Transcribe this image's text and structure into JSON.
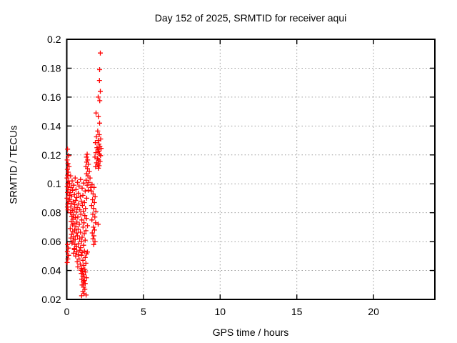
{
  "title": "Day 152 of 2025, SRMTID for receiver aqui",
  "colors": {
    "marker": "#ff0000",
    "grid": "#999999",
    "border": "#000000",
    "background": "#ffffff",
    "text": "#000000"
  },
  "chart_data": {
    "type": "scatter",
    "title": "Day 152 of 2025, SRMTID for receiver aqui",
    "xlabel": "GPS time / hours",
    "ylabel": "SRMTID / TECUs",
    "xlim": [
      0,
      24
    ],
    "ylim": [
      0.02,
      0.2
    ],
    "xticks": [
      0,
      5,
      10,
      15,
      20
    ],
    "xtick_labels": [
      "0",
      "5",
      "10",
      "15",
      "20"
    ],
    "yticks": [
      0.02,
      0.04,
      0.06,
      0.08,
      0.1,
      0.12,
      0.14,
      0.16,
      0.18,
      0.2
    ],
    "ytick_labels": [
      "0.02",
      "0.04",
      "0.06",
      "0.08",
      "0.1",
      "0.12",
      "0.14",
      "0.16",
      "0.18",
      "0.2"
    ],
    "grid": true,
    "legend": "none",
    "marker": {
      "shape": "plus",
      "color": "#ff0000",
      "size": 7
    },
    "series": [
      {
        "name": "SRMTID",
        "points": [
          [
            2.19,
            0.1905
          ],
          [
            2.14,
            0.179
          ],
          [
            2.13,
            0.1715
          ],
          [
            2.19,
            0.164
          ],
          [
            2.05,
            0.16
          ],
          [
            2.15,
            0.1575
          ],
          [
            1.91,
            0.149
          ],
          [
            2.06,
            0.1465
          ],
          [
            2.14,
            0.142
          ],
          [
            2.02,
            0.1365
          ],
          [
            2.12,
            0.134
          ],
          [
            1.93,
            0.1325
          ],
          [
            2.21,
            0.131
          ],
          [
            2.05,
            0.13
          ],
          [
            1.86,
            0.1285
          ],
          [
            2.1,
            0.1275
          ],
          [
            2.16,
            0.126
          ],
          [
            1.97,
            0.125
          ],
          [
            2.24,
            0.1245
          ],
          [
            2.03,
            0.1235
          ],
          [
            2.08,
            0.1225
          ],
          [
            1.9,
            0.1215
          ],
          [
            2.14,
            0.1205
          ],
          [
            2.2,
            0.1195
          ],
          [
            1.84,
            0.1185
          ],
          [
            2.0,
            0.1175
          ],
          [
            2.07,
            0.1165
          ],
          [
            2.17,
            0.1155
          ],
          [
            1.94,
            0.1145
          ],
          [
            2.03,
            0.1135
          ],
          [
            2.11,
            0.1125
          ],
          [
            1.88,
            0.1118
          ],
          [
            2.06,
            0.1108
          ],
          [
            1.33,
            0.1205
          ],
          [
            1.28,
            0.1185
          ],
          [
            1.36,
            0.1165
          ],
          [
            1.3,
            0.115
          ],
          [
            1.41,
            0.1135
          ],
          [
            1.25,
            0.112
          ],
          [
            1.35,
            0.1105
          ],
          [
            1.47,
            0.1085
          ],
          [
            1.29,
            0.107
          ],
          [
            1.38,
            0.1055
          ],
          [
            1.52,
            0.104
          ],
          [
            1.26,
            0.1025
          ],
          [
            1.44,
            0.101
          ],
          [
            1.33,
            0.099
          ],
          [
            1.56,
            0.0975
          ],
          [
            1.4,
            0.0955
          ],
          [
            0.05,
            0.124
          ],
          [
            0.12,
            0.1195
          ],
          [
            0.03,
            0.1165
          ],
          [
            0.08,
            0.114
          ],
          [
            0.15,
            0.112
          ],
          [
            0.04,
            0.11
          ],
          [
            0.1,
            0.108
          ],
          [
            0.06,
            0.106
          ],
          [
            0.02,
            0.104
          ],
          [
            0.13,
            0.102
          ],
          [
            0.07,
            0.1
          ],
          [
            0.03,
            0.098
          ],
          [
            0.09,
            0.096
          ],
          [
            0.05,
            0.094
          ],
          [
            0.16,
            0.092
          ],
          [
            0.02,
            0.09
          ],
          [
            0.11,
            0.088
          ],
          [
            0.06,
            0.086
          ],
          [
            0.04,
            0.084
          ],
          [
            0.08,
            0.082
          ],
          [
            0.25,
            0.1055
          ],
          [
            0.55,
            0.104
          ],
          [
            0.9,
            0.103
          ],
          [
            0.35,
            0.102
          ],
          [
            0.7,
            0.101
          ],
          [
            1.1,
            0.1005
          ],
          [
            0.18,
            0.1
          ],
          [
            0.45,
            0.099
          ],
          [
            0.8,
            0.0985
          ],
          [
            0.28,
            0.0975
          ],
          [
            1.0,
            0.097
          ],
          [
            0.6,
            0.096
          ],
          [
            0.38,
            0.0955
          ],
          [
            1.2,
            0.095
          ],
          [
            0.22,
            0.094
          ],
          [
            0.75,
            0.0935
          ],
          [
            0.5,
            0.0925
          ],
          [
            1.05,
            0.092
          ],
          [
            0.32,
            0.0915
          ],
          [
            0.88,
            0.091
          ],
          [
            0.65,
            0.0905
          ],
          [
            1.3,
            0.09
          ],
          [
            0.2,
            0.089
          ],
          [
            0.58,
            0.0885
          ],
          [
            0.95,
            0.088
          ],
          [
            0.42,
            0.0875
          ],
          [
            1.15,
            0.087
          ],
          [
            0.3,
            0.0865
          ],
          [
            0.78,
            0.086
          ],
          [
            0.52,
            0.0855
          ],
          [
            1.02,
            0.085
          ],
          [
            0.26,
            0.084
          ],
          [
            0.68,
            0.0835
          ],
          [
            1.22,
            0.083
          ],
          [
            0.48,
            0.0825
          ],
          [
            0.85,
            0.082
          ],
          [
            0.36,
            0.0815
          ],
          [
            1.08,
            0.081
          ],
          [
            0.62,
            0.0805
          ],
          [
            0.24,
            0.08
          ],
          [
            0.92,
            0.079
          ],
          [
            0.44,
            0.0785
          ],
          [
            1.18,
            0.078
          ],
          [
            0.33,
            0.0775
          ],
          [
            0.72,
            0.077
          ],
          [
            0.56,
            0.0765
          ],
          [
            1.28,
            0.076
          ],
          [
            0.4,
            0.0755
          ],
          [
            0.98,
            0.075
          ],
          [
            0.29,
            0.074
          ],
          [
            0.66,
            0.0735
          ],
          [
            1.12,
            0.073
          ],
          [
            0.47,
            0.0725
          ],
          [
            0.82,
            0.072
          ],
          [
            0.37,
            0.0715
          ],
          [
            1.35,
            0.071
          ],
          [
            0.59,
            0.0705
          ],
          [
            1.06,
            0.07
          ],
          [
            0.23,
            0.069
          ],
          [
            0.74,
            0.0685
          ],
          [
            0.51,
            0.068
          ],
          [
            1.25,
            0.0675
          ],
          [
            0.39,
            0.067
          ],
          [
            0.89,
            0.0665
          ],
          [
            0.63,
            0.066
          ],
          [
            1.14,
            0.0655
          ],
          [
            0.31,
            0.065
          ],
          [
            0.7,
            0.064
          ],
          [
            0.46,
            0.0635
          ],
          [
            1.0,
            0.063
          ],
          [
            0.27,
            0.0625
          ],
          [
            0.84,
            0.062
          ],
          [
            0.55,
            0.0615
          ],
          [
            1.2,
            0.061
          ],
          [
            0.41,
            0.0605
          ],
          [
            0.96,
            0.06
          ],
          [
            0.34,
            0.059
          ],
          [
            0.77,
            0.0585
          ],
          [
            0.53,
            0.058
          ],
          [
            1.1,
            0.0575
          ],
          [
            0.64,
            0.0565
          ],
          [
            0.9,
            0.0558
          ],
          [
            0.49,
            0.0552
          ],
          [
            1.65,
            0.0995
          ],
          [
            1.78,
            0.0975
          ],
          [
            1.6,
            0.095
          ],
          [
            1.72,
            0.093
          ],
          [
            1.85,
            0.091
          ],
          [
            1.68,
            0.089
          ],
          [
            1.8,
            0.087
          ],
          [
            1.62,
            0.085
          ],
          [
            1.75,
            0.083
          ],
          [
            1.9,
            0.081
          ],
          [
            1.7,
            0.079
          ],
          [
            1.83,
            0.077
          ],
          [
            1.64,
            0.075
          ],
          [
            1.88,
            0.073
          ],
          [
            2.05,
            0.072
          ],
          [
            1.74,
            0.07
          ],
          [
            1.81,
            0.068
          ],
          [
            1.66,
            0.066
          ],
          [
            1.77,
            0.064
          ],
          [
            1.71,
            0.062
          ],
          [
            1.84,
            0.06
          ],
          [
            1.76,
            0.058
          ],
          [
            0.5,
            0.0545
          ],
          [
            0.85,
            0.054
          ],
          [
            1.15,
            0.0535
          ],
          [
            0.65,
            0.053
          ],
          [
            1.35,
            0.0528
          ],
          [
            1.0,
            0.0525
          ],
          [
            0.45,
            0.052
          ],
          [
            1.3,
            0.0515
          ],
          [
            0.75,
            0.051
          ],
          [
            0.95,
            0.0505
          ],
          [
            0.58,
            0.05
          ],
          [
            1.2,
            0.049
          ],
          [
            0.8,
            0.048
          ],
          [
            1.05,
            0.047
          ],
          [
            0.68,
            0.046
          ],
          [
            1.25,
            0.045
          ],
          [
            0.88,
            0.0445
          ],
          [
            1.1,
            0.0435
          ],
          [
            0.72,
            0.0425
          ],
          [
            0.98,
            0.0415
          ],
          [
            1.18,
            0.0408
          ],
          [
            0.92,
            0.0402
          ],
          [
            1.02,
            0.0395
          ],
          [
            1.22,
            0.039
          ],
          [
            0.95,
            0.038
          ],
          [
            1.12,
            0.037
          ],
          [
            1.05,
            0.036
          ],
          [
            1.28,
            0.035
          ],
          [
            0.98,
            0.034
          ],
          [
            1.15,
            0.033
          ],
          [
            1.08,
            0.032
          ],
          [
            1.2,
            0.031
          ],
          [
            1.0,
            0.03
          ],
          [
            1.1,
            0.0285
          ],
          [
            1.18,
            0.027
          ],
          [
            1.05,
            0.0255
          ],
          [
            1.12,
            0.024
          ],
          [
            1.26,
            0.023
          ],
          [
            0.97,
            0.0225
          ],
          [
            0.05,
            0.058
          ],
          [
            0.1,
            0.0555
          ],
          [
            0.04,
            0.053
          ],
          [
            0.12,
            0.0505
          ],
          [
            0.07,
            0.048
          ],
          [
            0.03,
            0.0455
          ]
        ]
      }
    ]
  }
}
